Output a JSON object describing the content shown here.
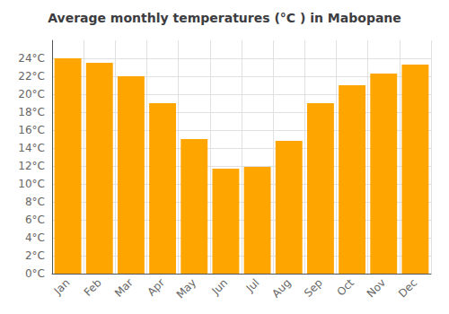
{
  "chart_data": {
    "type": "bar",
    "title": "Average monthly temperatures (°C ) in Mabopane",
    "categories": [
      "Jan",
      "Feb",
      "Mar",
      "Apr",
      "May",
      "Jun",
      "Jul",
      "Aug",
      "Sep",
      "Oct",
      "Nov",
      "Dec"
    ],
    "values": [
      24.0,
      23.5,
      22.0,
      19.0,
      15.0,
      11.7,
      11.9,
      14.8,
      19.0,
      21.0,
      22.3,
      23.3
    ],
    "color": "#FFA500",
    "ylim": [
      0,
      26
    ],
    "yticks": [
      {
        "value": 0,
        "label": "0°C"
      },
      {
        "value": 2,
        "label": "2°C"
      },
      {
        "value": 4,
        "label": "4°C"
      },
      {
        "value": 6,
        "label": "6°C"
      },
      {
        "value": 8,
        "label": "8°C"
      },
      {
        "value": 10,
        "label": "10°C"
      },
      {
        "value": 12,
        "label": "12°C"
      },
      {
        "value": 14,
        "label": "14°C"
      },
      {
        "value": 16,
        "label": "16°C"
      },
      {
        "value": 18,
        "label": "18°C"
      },
      {
        "value": 20,
        "label": "20°C"
      },
      {
        "value": 22,
        "label": "22°C"
      },
      {
        "value": 24,
        "label": "24°C"
      }
    ],
    "grid": true
  }
}
